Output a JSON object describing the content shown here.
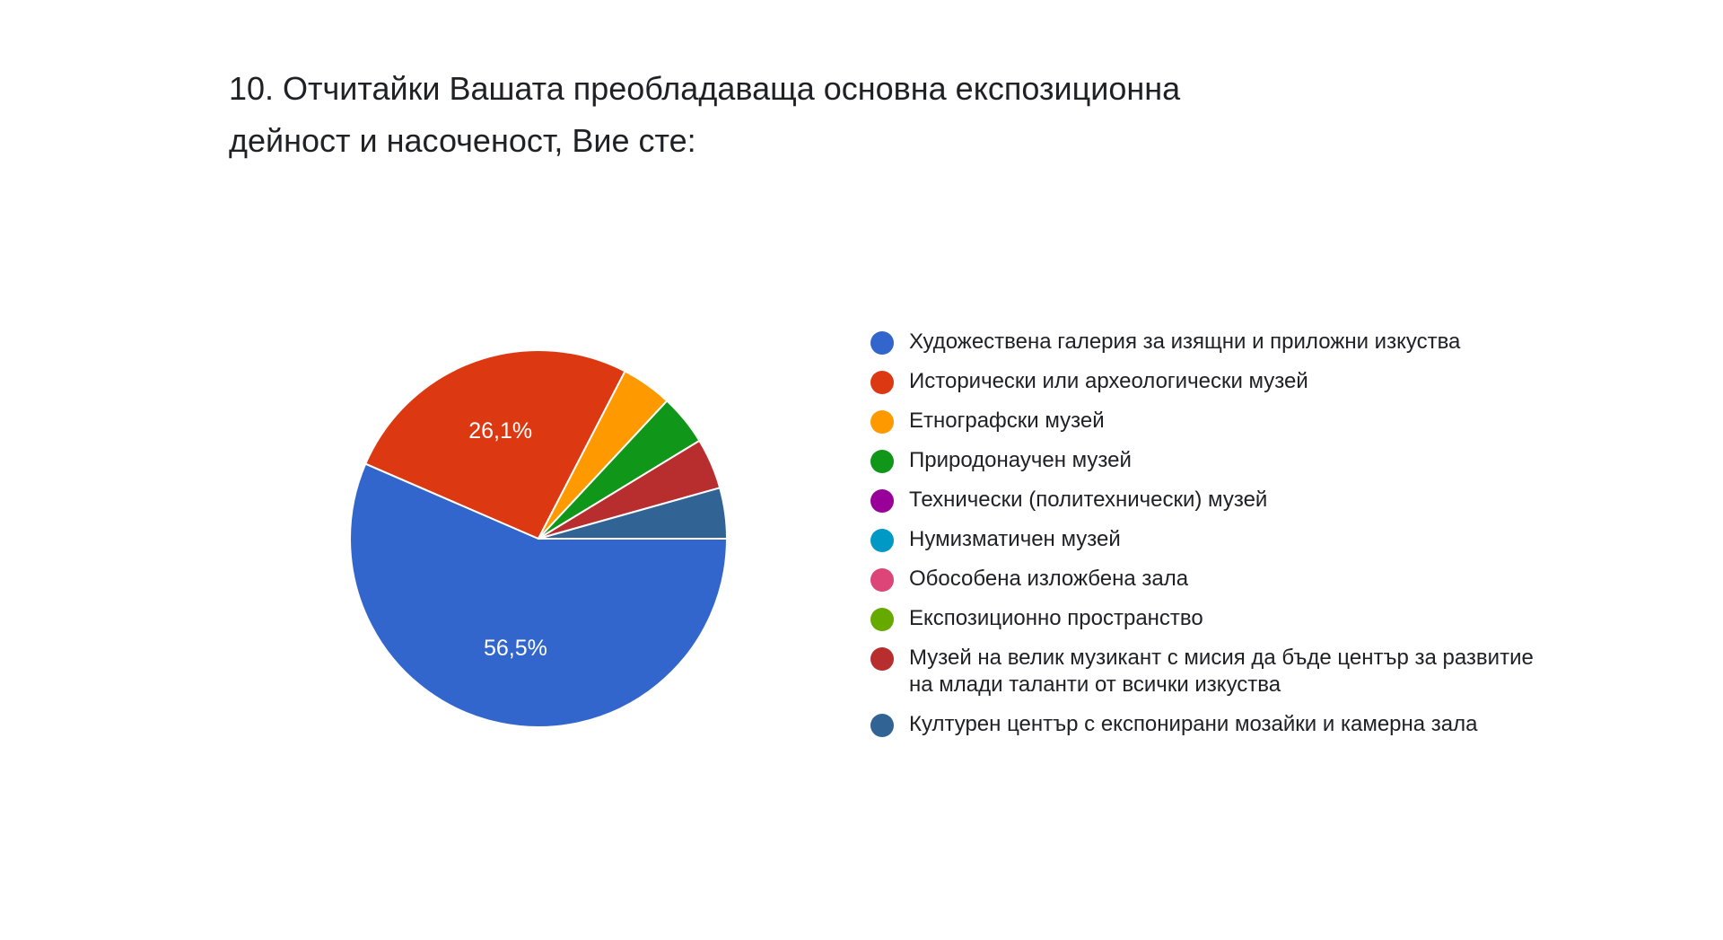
{
  "title_lines": [
    "10. Отчитайки Вашата преобладаваща основна експозиционна",
    "дейност и насоченост, Вие сте:"
  ],
  "chart_data": {
    "type": "pie",
    "title": "10. Отчитайки Вашата преобладаваща основна експозиционна дейност и насоченост, Вие сте:",
    "legend_position": "right",
    "slices": [
      {
        "label": "Художествена галерия за изящни и приложни изкуства",
        "value": 56.5,
        "display": "56,5%",
        "color": "#3366cc"
      },
      {
        "label": "Исторически или археологически музей",
        "value": 26.1,
        "display": "26,1%",
        "color": "#dc3912"
      },
      {
        "label": "Етнографски музей",
        "value": 4.35,
        "display": "",
        "color": "#ff9900"
      },
      {
        "label": "Природонаучен музей",
        "value": 4.35,
        "display": "",
        "color": "#109618"
      },
      {
        "label": "Технически (политехнически) музей",
        "value": 0,
        "display": "",
        "color": "#990099"
      },
      {
        "label": "Нумизматичен музей",
        "value": 0,
        "display": "",
        "color": "#0099c6"
      },
      {
        "label": "Обособена изложбена зала",
        "value": 0,
        "display": "",
        "color": "#dd4477"
      },
      {
        "label": "Експозиционно пространство",
        "value": 0,
        "display": "",
        "color": "#66aa00"
      },
      {
        "label": "Музей на велик музикант с мисия да бъде център за развитие на млади таланти от всички изкуства",
        "value": 4.35,
        "display": "",
        "color": "#b82e2e"
      },
      {
        "label": "Културен център с експонирани мозайки и камерна зала",
        "value": 4.35,
        "display": "",
        "color": "#316395"
      }
    ]
  }
}
